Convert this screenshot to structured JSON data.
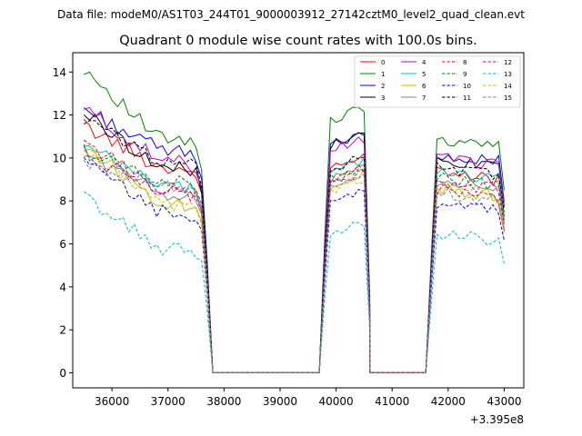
{
  "chart_data": {
    "type": "line",
    "suptitle": "Data file: modeM0/AS1T03_244T01_9000003912_27142cztM0_level2_quad_clean.evt",
    "title": "Quadrant 0 module wise count rates with 100.0s bins.",
    "xlabel": "",
    "ylabel": "",
    "x_offset_label": "+3.395e8",
    "xlim": [
      35300,
      43350
    ],
    "ylim": [
      -0.7,
      14.9
    ],
    "x_ticks": [
      36000,
      37000,
      38000,
      39000,
      40000,
      41000,
      42000,
      43000
    ],
    "x_tick_labels": [
      "36000",
      "37000",
      "38000",
      "39000",
      "40000",
      "41000",
      "42000",
      "43000"
    ],
    "y_ticks": [
      0,
      2,
      4,
      6,
      8,
      10,
      12,
      14
    ],
    "y_tick_labels": [
      "0",
      "2",
      "4",
      "6",
      "8",
      "10",
      "12",
      "14"
    ],
    "legend_position": "top-right",
    "gaps": [
      [
        37800,
        39700
      ],
      [
        40600,
        41600
      ]
    ],
    "segments": [
      [
        35500,
        37600
      ],
      [
        39900,
        40500
      ],
      [
        41800,
        43000
      ]
    ],
    "edges": [
      [
        37700,
        37800
      ],
      [
        39700,
        39800
      ],
      [
        40500,
        40600
      ],
      [
        41600,
        41700
      ]
    ],
    "series": [
      {
        "name": "0",
        "color": "#ff0000",
        "dash": "solid",
        "level": 10.2,
        "start": 11.5,
        "seg2": 9.5,
        "seg3": 9.3
      },
      {
        "name": "1",
        "color": "#008000",
        "dash": "solid",
        "level": 11.5,
        "start": 14.2,
        "seg2": 11.8,
        "seg3": 10.9
      },
      {
        "name": "2",
        "color": "#0000ff",
        "dash": "solid",
        "level": 11.0,
        "start": 12.3,
        "seg2": 10.7,
        "seg3": 10.2
      },
      {
        "name": "3",
        "color": "#000000",
        "dash": "solid",
        "level": 10.2,
        "start": 12.1,
        "seg2": 10.6,
        "seg3": 9.9
      },
      {
        "name": "4",
        "color": "#bf00bf",
        "dash": "solid",
        "level": 10.5,
        "start": 12.3,
        "seg2": 10.4,
        "seg3": 10.0
      },
      {
        "name": "5",
        "color": "#00bfbf",
        "dash": "solid",
        "level": 9.4,
        "start": 10.5,
        "seg2": 9.3,
        "seg3": 9.4
      },
      {
        "name": "6",
        "color": "#bfbf00",
        "dash": "solid",
        "level": 8.6,
        "start": 10.6,
        "seg2": 8.8,
        "seg3": 8.6
      },
      {
        "name": "7",
        "color": "#808080",
        "dash": "solid",
        "level": 9.0,
        "start": 10.2,
        "seg2": 9.0,
        "seg3": 8.9
      },
      {
        "name": "8",
        "color": "#ff0000",
        "dash": "dashed",
        "level": 9.1,
        "start": 10.8,
        "seg2": 9.0,
        "seg3": 8.5
      },
      {
        "name": "9",
        "color": "#008000",
        "dash": "dashed",
        "level": 9.6,
        "start": 10.3,
        "seg2": 9.0,
        "seg3": 9.1
      },
      {
        "name": "10",
        "color": "#0000ff",
        "dash": "dashed",
        "level": 8.1,
        "start": 9.8,
        "seg2": 7.9,
        "seg3": 7.9
      },
      {
        "name": "11",
        "color": "#000000",
        "dash": "dashed",
        "level": 10.5,
        "start": 11.8,
        "seg2": 9.5,
        "seg3": 9.6
      },
      {
        "name": "12",
        "color": "#bf00bf",
        "dash": "dashed",
        "level": 9.2,
        "start": 10.2,
        "seg2": 8.9,
        "seg3": 8.9
      },
      {
        "name": "13",
        "color": "#00bfbf",
        "dash": "dashed",
        "level": 6.4,
        "start": 8.2,
        "seg2": 6.5,
        "seg3": 6.5
      },
      {
        "name": "14",
        "color": "#bfbf00",
        "dash": "dashed",
        "level": 8.4,
        "start": 10.4,
        "seg2": 8.5,
        "seg3": 8.7
      },
      {
        "name": "15",
        "color": "#808080",
        "dash": "dashed",
        "level": 9.4,
        "start": 9.6,
        "seg2": 8.5,
        "seg3": 8.4
      }
    ]
  }
}
